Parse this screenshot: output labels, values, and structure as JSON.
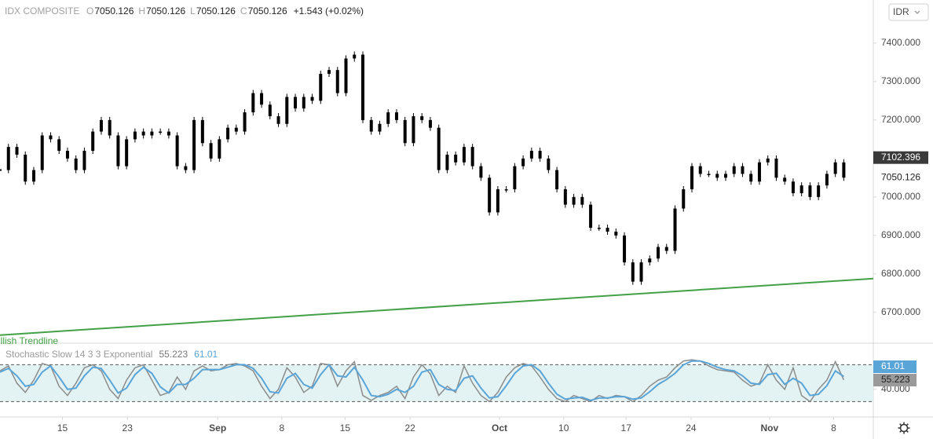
{
  "header": {
    "currency": "IDR"
  },
  "chart_data": [
    {
      "type": "candlestick",
      "title": "IDX COMPOSITE",
      "legend_values": [
        {
          "label": "O",
          "value": 7050.126
        },
        {
          "label": "H",
          "value": 7050.126
        },
        {
          "label": "L",
          "value": 7050.126
        },
        {
          "label": "C",
          "value": 7050.126
        }
      ],
      "change": "+1.543 (+0.02%)",
      "x": [
        0,
        1,
        2,
        3,
        4,
        5,
        6,
        7,
        8,
        9,
        10,
        11,
        12,
        13,
        14,
        15,
        16,
        17,
        18,
        19,
        20,
        21,
        22,
        23,
        24,
        25,
        26,
        27,
        28,
        29,
        30,
        31,
        32,
        33,
        34,
        35,
        36,
        37,
        38,
        39,
        40,
        41,
        42,
        43,
        44,
        45,
        46,
        47,
        48,
        49,
        50,
        51,
        52,
        53,
        54,
        55,
        56,
        57,
        58,
        59,
        60,
        61,
        62,
        63,
        64,
        65,
        66,
        67,
        68,
        69,
        70,
        71,
        72,
        73,
        74,
        75,
        76,
        77,
        78,
        79,
        80,
        81,
        82,
        83,
        84,
        85,
        86,
        87,
        88,
        89,
        90,
        91,
        92,
        93,
        94,
        95,
        96,
        97,
        98,
        99,
        100
      ],
      "values": [
        7070,
        7130,
        7110,
        7040,
        7070,
        7160,
        7150,
        7120,
        7100,
        7070,
        7120,
        7170,
        7200,
        7160,
        7080,
        7150,
        7170,
        7160,
        7170,
        7170,
        7160,
        7080,
        7070,
        7200,
        7140,
        7100,
        7150,
        7180,
        7170,
        7220,
        7270,
        7240,
        7210,
        7190,
        7260,
        7230,
        7260,
        7250,
        7320,
        7330,
        7270,
        7360,
        7370,
        7200,
        7170,
        7190,
        7220,
        7200,
        7140,
        7210,
        7200,
        7180,
        7070,
        7110,
        7090,
        7130,
        7080,
        7050,
        6960,
        7020,
        7020,
        7080,
        7100,
        7120,
        7100,
        7070,
        7020,
        6980,
        7000,
        6980,
        6920,
        6920,
        6910,
        6900,
        6830,
        6780,
        6830,
        6840,
        6870,
        6860,
        6970,
        7020,
        7080,
        7060,
        7060,
        7050,
        7060,
        7080,
        7060,
        7040,
        7090,
        7100,
        7050,
        7040,
        7010,
        7030,
        7000,
        7030,
        7060,
        7090,
        7050.126
      ],
      "color": "#000000",
      "badge": 7102.396,
      "trendline": {
        "label": "Bullish Trendline",
        "color": "#43a047",
        "x": [
          0,
          103.5
        ],
        "values": [
          6641,
          6788
        ]
      },
      "xlim": [
        0,
        103.5
      ],
      "ylim": [
        6620,
        7512
      ],
      "yticks": [
        {
          "value": 7400,
          "label": "7400.000"
        },
        {
          "value": 7300,
          "label": "7300.000"
        },
        {
          "value": 7200,
          "label": "7200.000"
        },
        {
          "value": 7100,
          "label": "7100.000"
        },
        {
          "value": 7000,
          "label": "7000.000"
        },
        {
          "value": 6900,
          "label": "6900.000"
        },
        {
          "value": 6800,
          "label": "6800.000"
        },
        {
          "value": 6700,
          "label": "6700.000"
        }
      ],
      "xticks": [
        {
          "value": 7.4,
          "label": "15"
        },
        {
          "value": 15.1,
          "label": "23"
        },
        {
          "value": 25.8,
          "label": "Sep"
        },
        {
          "value": 33.4,
          "label": "8"
        },
        {
          "value": 40.9,
          "label": "15"
        },
        {
          "value": 48.6,
          "label": "22"
        },
        {
          "value": 59.2,
          "label": "Oct"
        },
        {
          "value": 66.8,
          "label": "10"
        },
        {
          "value": 74.2,
          "label": "17"
        },
        {
          "value": 81.9,
          "label": "24"
        },
        {
          "value": 91.2,
          "label": "Nov"
        },
        {
          "value": 98.8,
          "label": "8"
        }
      ]
    },
    {
      "type": "line",
      "title": "Stochastic Slow 14 3 3 Exponential",
      "x": [
        0,
        1,
        2,
        3,
        4,
        5,
        6,
        7,
        8,
        9,
        10,
        11,
        12,
        13,
        14,
        15,
        16,
        17,
        18,
        19,
        20,
        21,
        22,
        23,
        24,
        25,
        26,
        27,
        28,
        29,
        30,
        31,
        32,
        33,
        34,
        35,
        36,
        37,
        38,
        39,
        40,
        41,
        42,
        43,
        44,
        45,
        46,
        47,
        48,
        49,
        50,
        51,
        52,
        53,
        54,
        55,
        56,
        57,
        58,
        59,
        60,
        61,
        62,
        63,
        64,
        65,
        66,
        67,
        68,
        69,
        70,
        71,
        72,
        73,
        74,
        75,
        76,
        77,
        78,
        79,
        80,
        81,
        82,
        83,
        84,
        85,
        86,
        87,
        88,
        89,
        90,
        91,
        92,
        93,
        94,
        95,
        96,
        97,
        98,
        99,
        100
      ],
      "series": [
        {
          "color": "#8c8c8c",
          "values": [
            70,
            78,
            50,
            35,
            55,
            82,
            78,
            45,
            30,
            50,
            75,
            80,
            70,
            40,
            25,
            55,
            75,
            80,
            55,
            30,
            35,
            60,
            40,
            70,
            78,
            70,
            72,
            80,
            82,
            78,
            70,
            45,
            25,
            40,
            75,
            60,
            35,
            45,
            82,
            80,
            45,
            70,
            85,
            30,
            22,
            30,
            35,
            45,
            25,
            60,
            80,
            65,
            30,
            45,
            35,
            78,
            50,
            30,
            20,
            35,
            60,
            75,
            82,
            78,
            60,
            40,
            25,
            20,
            30,
            25,
            20,
            30,
            25,
            30,
            28,
            20,
            30,
            45,
            55,
            60,
            75,
            86,
            88,
            86,
            78,
            72,
            70,
            68,
            55,
            45,
            50,
            80,
            55,
            40,
            75,
            30,
            20,
            40,
            55,
            85,
            55.223
          ]
        },
        {
          "color": "#5aa5d8",
          "values": [
            68,
            74,
            62,
            45,
            48,
            68,
            78,
            60,
            40,
            42,
            62,
            76,
            74,
            55,
            34,
            42,
            64,
            76,
            66,
            44,
            34,
            48,
            48,
            58,
            72,
            72,
            72,
            76,
            80,
            80,
            74,
            58,
            36,
            34,
            58,
            66,
            48,
            42,
            64,
            80,
            62,
            60,
            76,
            55,
            30,
            28,
            32,
            40,
            35,
            45,
            68,
            72,
            48,
            40,
            38,
            58,
            62,
            42,
            26,
            28,
            46,
            66,
            78,
            80,
            70,
            50,
            32,
            24,
            26,
            27,
            22,
            26,
            26,
            28,
            28,
            24,
            26,
            36,
            48,
            56,
            66,
            80,
            86,
            86,
            82,
            76,
            72,
            70,
            62,
            50,
            48,
            64,
            66,
            48,
            58,
            50,
            30,
            32,
            46,
            70,
            61.01
          ]
        }
      ],
      "bands": [
        20,
        80
      ],
      "band_color": "#e3f2f2",
      "xlim": [
        0,
        103.5
      ],
      "ylim": [
        -5,
        115
      ],
      "yticks": [
        {
          "value": 40,
          "label": "40.000"
        }
      ]
    }
  ]
}
